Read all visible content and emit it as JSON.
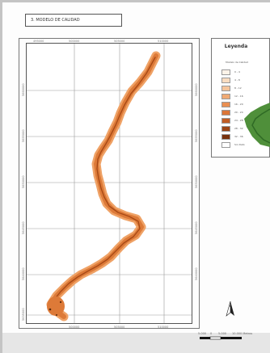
{
  "map": {
    "title": "3. MODELO DE CALIDAD",
    "x_ticks": [
      "495000",
      "500000",
      "505000",
      "510000"
    ],
    "y_ticks": [
      "5660000",
      "5655000",
      "5650000",
      "5645000",
      "5640000",
      "5635000",
      "5630000"
    ]
  },
  "legend": {
    "title": "Leyenda",
    "subtitle": "Modelo de Calidad",
    "items": [
      {
        "label": "0 - 4",
        "color": "#fdf3e8"
      },
      {
        "label": "4 - 8",
        "color": "#f9dcc0"
      },
      {
        "label": "8 - 12",
        "color": "#f5c49b"
      },
      {
        "label": "12 - 16",
        "color": "#f0aa74"
      },
      {
        "label": "16 - 20",
        "color": "#e98f52"
      },
      {
        "label": "20 - 24",
        "color": "#db7638"
      },
      {
        "label": "24 - 28",
        "color": "#c15d24"
      },
      {
        "label": "28 - 32",
        "color": "#9c4516"
      },
      {
        "label": "32 - 36",
        "color": "#78320e"
      },
      {
        "label": "Sin Dato",
        "color": "#ffffff"
      }
    ]
  },
  "north_arrow": {
    "label": "N"
  },
  "scale_bar": {
    "labels": [
      "5.000",
      "0",
      "5.000",
      "10.000 Metros"
    ]
  },
  "colors": {
    "stream_fill": "#dd7a38",
    "stream_dark": "#a84a16",
    "stream_light": "#efa266",
    "terrain": "#4f8f3a"
  }
}
